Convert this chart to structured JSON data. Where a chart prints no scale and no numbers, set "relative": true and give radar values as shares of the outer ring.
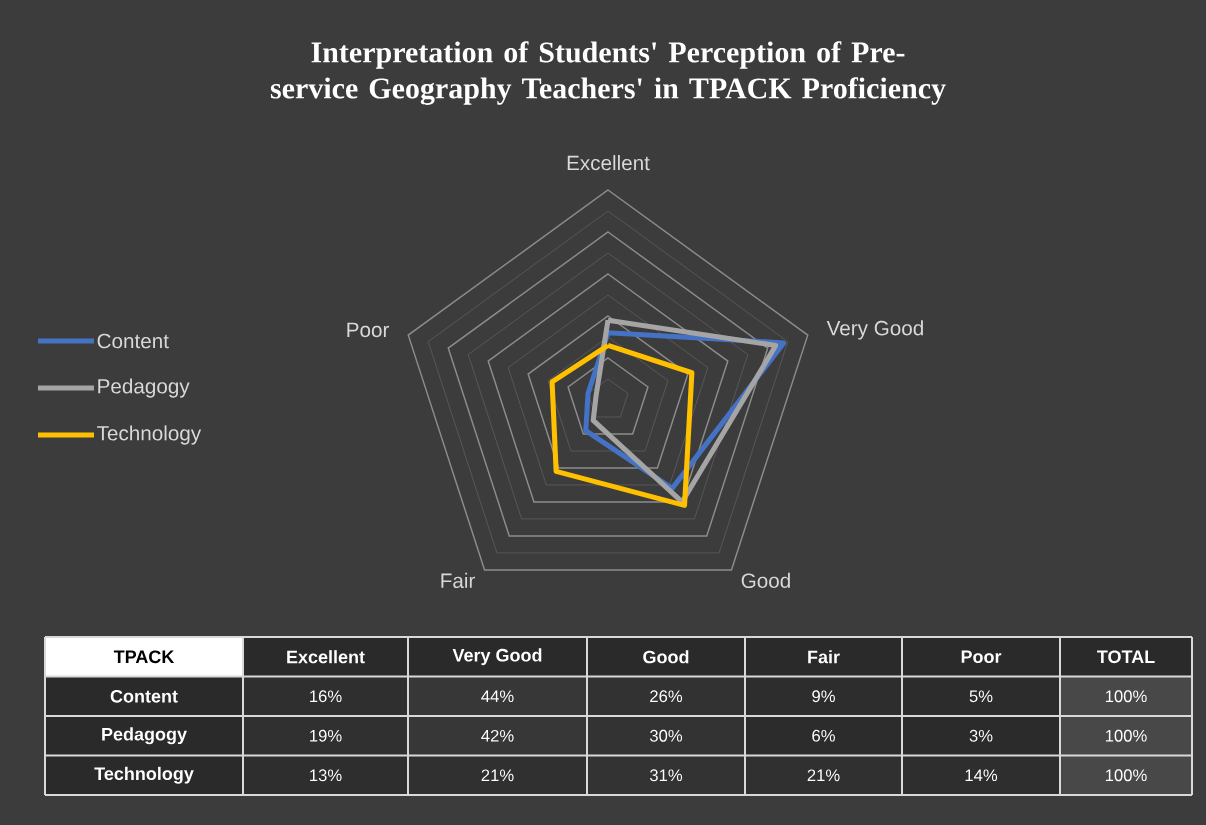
{
  "chart_data": [
    {
      "type": "radar",
      "title": "Interpretation of Students' Perception of Pre-service Geography Teachers' in TPACK Proficiency",
      "categories": [
        "Excellent",
        "Very Good",
        "Good",
        "Fair",
        "Poor"
      ],
      "relative": true,
      "series": [
        {
          "name": "Content",
          "color": "#4472c4",
          "values": [
            0.32,
            0.88,
            0.52,
            0.18,
            0.1
          ]
        },
        {
          "name": "Pedagogy",
          "color": "#a5a5a5",
          "values": [
            0.38,
            0.84,
            0.6,
            0.12,
            0.06
          ]
        },
        {
          "name": "Technology",
          "color": "#ffc000",
          "values": [
            0.26,
            0.42,
            0.62,
            0.42,
            0.28
          ]
        }
      ],
      "grid": true,
      "legend": "left"
    },
    {
      "type": "heatmap",
      "ylabel": "TPACK",
      "categories": [
        "Excellent",
        "Very Good",
        "Good",
        "Fair",
        "Poor",
        "TOTAL"
      ],
      "y_categories": [
        "Content",
        "Pedagogy",
        "Technology"
      ],
      "cells": [
        [
          16,
          44,
          26,
          9,
          5,
          100
        ],
        [
          19,
          42,
          30,
          6,
          3,
          100
        ],
        [
          13,
          21,
          31,
          21,
          14,
          100
        ]
      ],
      "cell_labels": [
        [
          "16%",
          "44%",
          "26%",
          "9%",
          "5%",
          "100%"
        ],
        [
          "19%",
          "42%",
          "30%",
          "6%",
          "3%",
          "100%"
        ],
        [
          "13%",
          "21%",
          "31%",
          "21%",
          "14%",
          "100%"
        ]
      ]
    }
  ]
}
